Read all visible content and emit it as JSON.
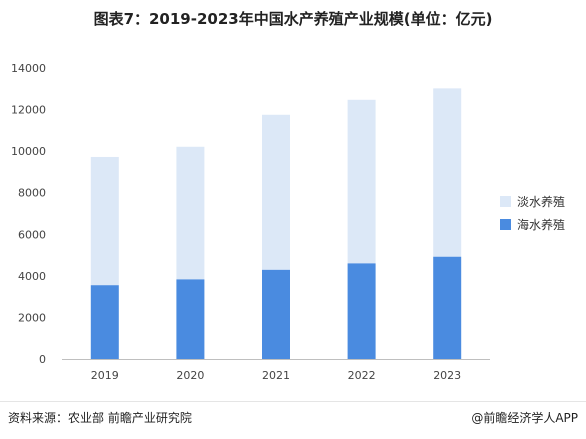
{
  "title": "图表7：2019-2023年中国水产养殖产业规模(单位：亿元)",
  "footer": {
    "source": "资料来源：农业部 前瞻产业研究院",
    "brand": "@前瞻经济学人APP"
  },
  "colors": {
    "freshwater": "#dce8f7",
    "marine": "#4a8be0",
    "axis": "#bfbfbf",
    "tick_text": "#444444"
  },
  "chart_data": {
    "type": "bar",
    "stacked": true,
    "categories": [
      "2019",
      "2020",
      "2021",
      "2022",
      "2023"
    ],
    "series": [
      {
        "name": "海水养殖",
        "values": [
          3550,
          3830,
          4290,
          4600,
          4920
        ]
      },
      {
        "name": "淡水养殖",
        "values": [
          6170,
          6380,
          7460,
          7870,
          8100
        ]
      }
    ],
    "ylim": [
      0,
      14000
    ],
    "yticks": [
      0,
      2000,
      4000,
      6000,
      8000,
      10000,
      12000,
      14000
    ],
    "grid": false,
    "legend": "right",
    "legend_order": [
      "淡水养殖",
      "海水养殖"
    ]
  }
}
